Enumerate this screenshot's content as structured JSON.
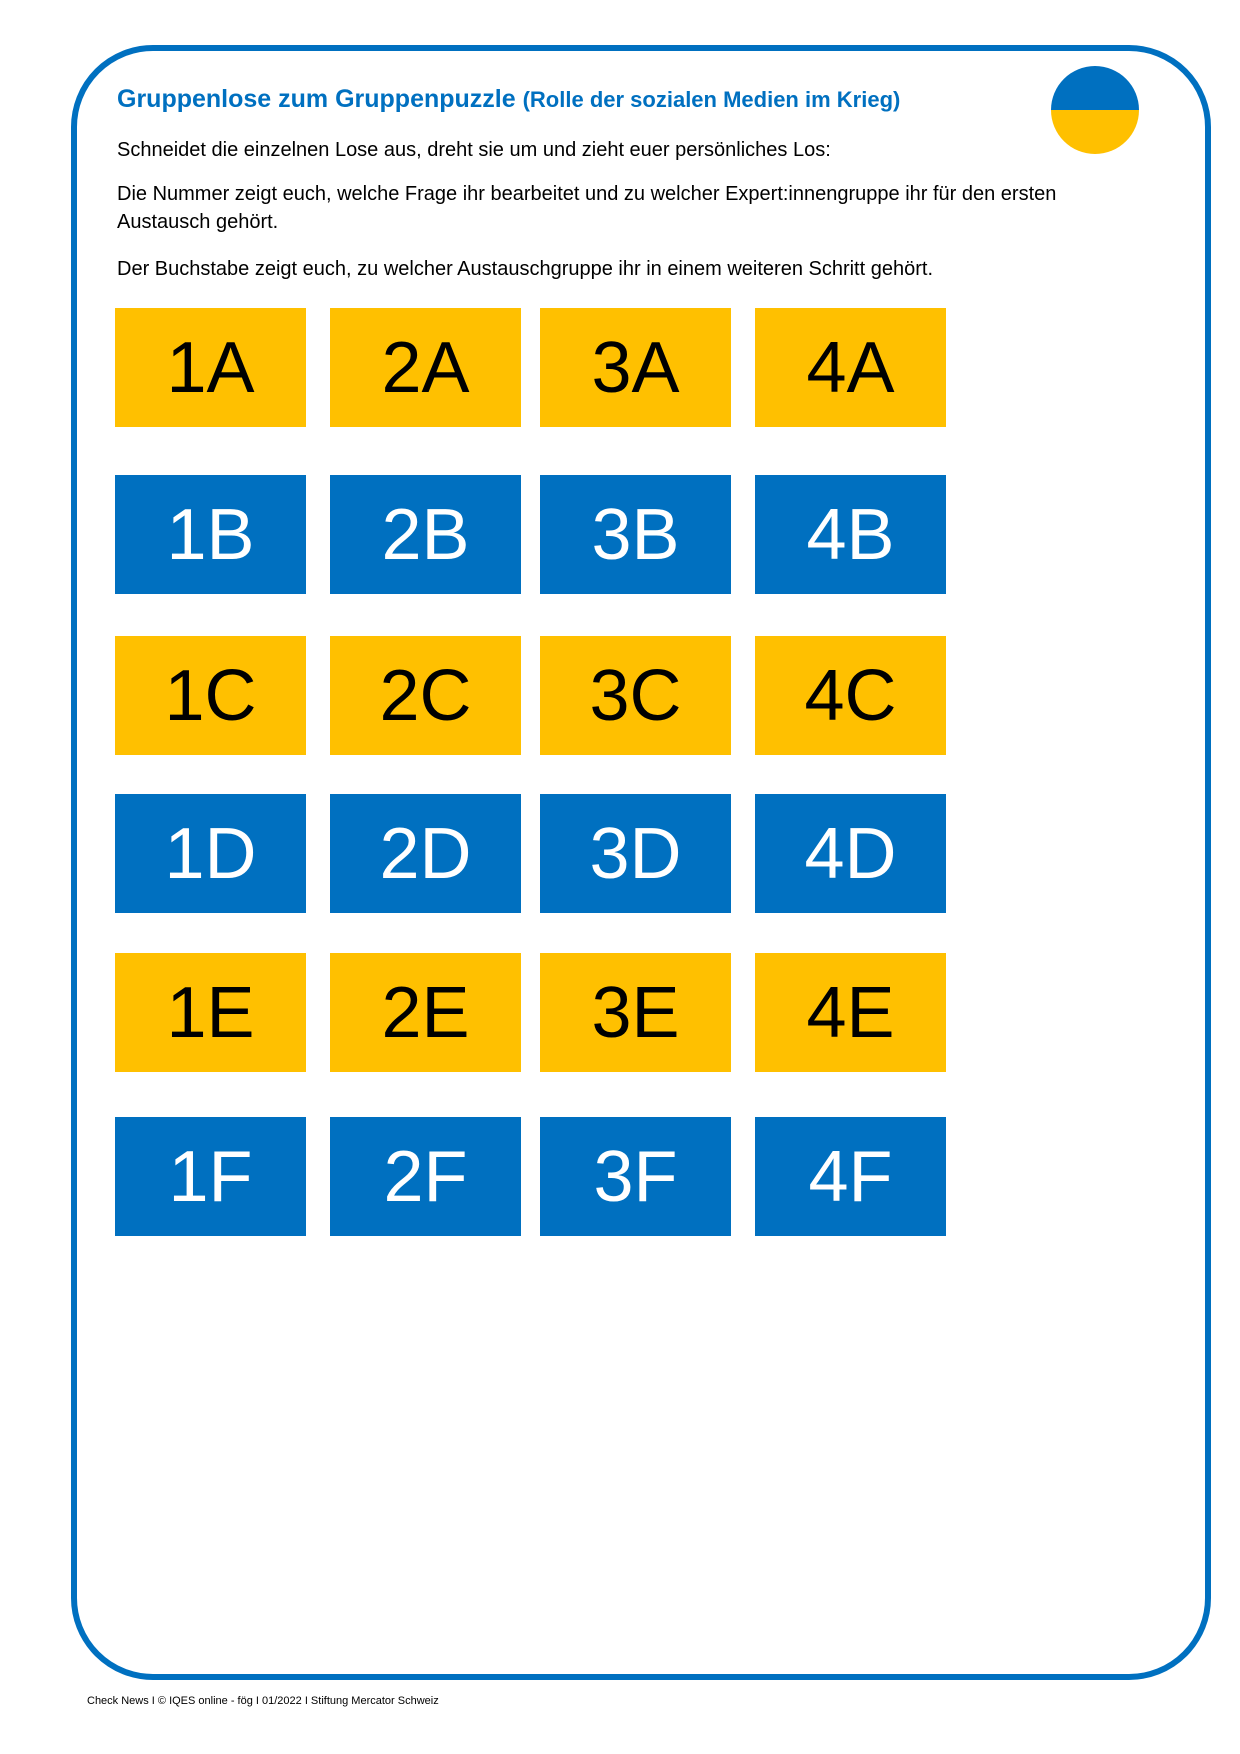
{
  "title": {
    "main": "Gruppenlose zum Gruppenpuzzle",
    "sub": "(Rolle der sozialen Medien im Krieg)"
  },
  "flag_icon": {
    "name": "ukraine-flag-circle-icon",
    "colors": [
      "#0070c0",
      "#ffc000"
    ]
  },
  "instructions": [
    "Schneidet die einzelnen Lose aus, dreht sie um und zieht euer persönliches Los:",
    "Die Nummer zeigt euch, welche Frage ihr bearbeitet und zu welcher Expert:innengruppe ihr für den ersten Austausch gehört.",
    "Der Buchstabe zeigt euch, zu welcher Austauschgruppe ihr in einem weiteren Schritt gehört."
  ],
  "colors": {
    "blue": "#0070c0",
    "yellow": "#ffc000"
  },
  "rows": [
    {
      "color": "yellow",
      "tiles": [
        "1A",
        "2A",
        "3A",
        "4A"
      ]
    },
    {
      "color": "blue",
      "tiles": [
        "1B",
        "2B",
        "3B",
        "4B"
      ]
    },
    {
      "color": "yellow",
      "tiles": [
        "1C",
        "2C",
        "3C",
        "4C"
      ]
    },
    {
      "color": "blue",
      "tiles": [
        "1D",
        "2D",
        "3D",
        "4D"
      ]
    },
    {
      "color": "yellow",
      "tiles": [
        "1E",
        "2E",
        "3E",
        "4E"
      ]
    },
    {
      "color": "blue",
      "tiles": [
        "1F",
        "2F",
        "3F",
        "4F"
      ]
    }
  ],
  "footer": "Check News I © IQES online - fög I 01/2022 I Stiftung Mercator Schweiz"
}
